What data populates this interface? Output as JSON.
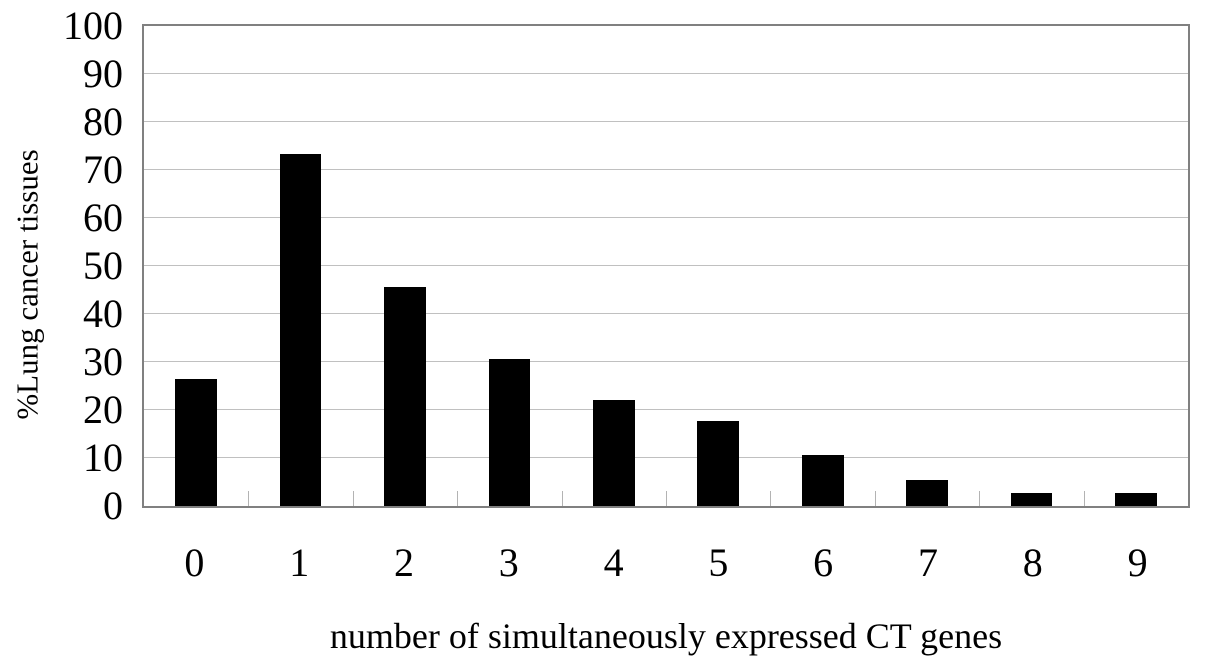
{
  "figure": {
    "background": "#ffffff"
  },
  "chart_data": {
    "type": "bar",
    "title": "",
    "xlabel": "number of simultaneously expressed CT genes",
    "ylabel": "%Lung cancer tissues",
    "categories": [
      "0",
      "1",
      "2",
      "3",
      "4",
      "5",
      "6",
      "7",
      "8",
      "9"
    ],
    "values": [
      26.5,
      73.4,
      45.6,
      30.7,
      22,
      17.8,
      10.6,
      5.5,
      2.8,
      2.8
    ],
    "ylim": [
      0,
      100
    ],
    "yticks": [
      0,
      10,
      20,
      30,
      40,
      50,
      60,
      70,
      80,
      90,
      100
    ],
    "grid": "horizontal-major",
    "legend": "none",
    "bar_color": "#000000",
    "gridline_color": "#c0c0c0",
    "axis_border_color": "#808080",
    "boundary_tick_color": "#b3b3b3"
  }
}
